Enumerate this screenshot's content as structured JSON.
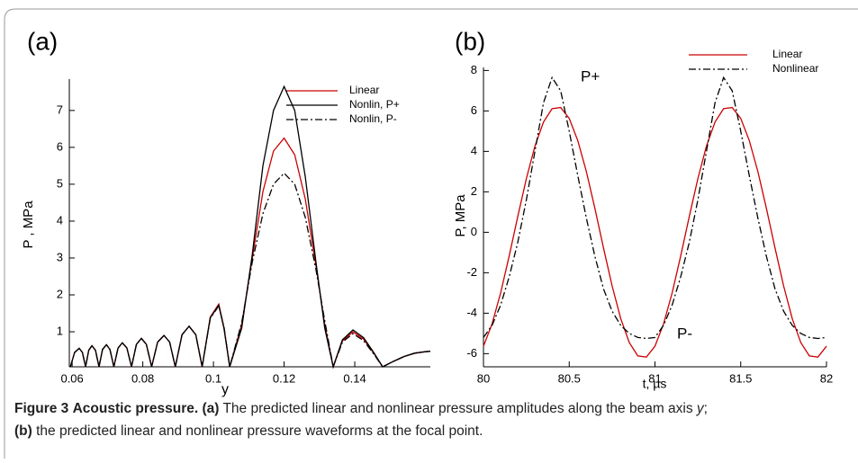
{
  "chart_data": [
    {
      "type": "line",
      "title": "(a)",
      "xlabel": "y",
      "ylabel": "P , MPa",
      "x": [
        0.0595,
        0.0607,
        0.062,
        0.0629,
        0.0638,
        0.0647,
        0.0656,
        0.0666,
        0.0676,
        0.0686,
        0.0697,
        0.0707,
        0.0718,
        0.073,
        0.0742,
        0.0755,
        0.0768,
        0.0782,
        0.0796,
        0.081,
        0.0825,
        0.0842,
        0.086,
        0.0876,
        0.0892,
        0.0911,
        0.0931,
        0.095,
        0.0968,
        0.0991,
        0.1015,
        0.103,
        0.1046,
        0.108,
        0.111,
        0.114,
        0.117,
        0.12,
        0.123,
        0.126,
        0.129,
        0.1315,
        0.1339,
        0.1365,
        0.1395,
        0.1425,
        0.1455,
        0.1479,
        0.151,
        0.154,
        0.157,
        0.16,
        0.1614
      ],
      "series": [
        {
          "name": "Linear",
          "color": "#cc0000",
          "dash": "solid",
          "values": [
            0.05,
            0.44,
            0.55,
            0.44,
            0.05,
            0.5,
            0.62,
            0.5,
            0.05,
            0.52,
            0.65,
            0.52,
            0.05,
            0.56,
            0.7,
            0.56,
            0.05,
            0.66,
            0.82,
            0.66,
            0.05,
            0.72,
            0.9,
            0.72,
            0.05,
            0.92,
            1.15,
            0.92,
            0.05,
            1.4,
            1.75,
            1.1,
            0.05,
            1.2,
            3.0,
            4.8,
            5.9,
            6.25,
            5.8,
            4.6,
            2.8,
            1.2,
            0.05,
            0.75,
            1.0,
            0.8,
            0.4,
            0.05,
            0.2,
            0.33,
            0.42,
            0.46,
            0.47
          ]
        },
        {
          "name": "Nonlin, P+",
          "color": "#000000",
          "dash": "solid",
          "values": [
            0.05,
            0.44,
            0.55,
            0.44,
            0.05,
            0.5,
            0.62,
            0.5,
            0.05,
            0.52,
            0.65,
            0.52,
            0.05,
            0.56,
            0.7,
            0.56,
            0.05,
            0.66,
            0.82,
            0.66,
            0.05,
            0.72,
            0.9,
            0.72,
            0.05,
            0.92,
            1.15,
            0.92,
            0.05,
            1.38,
            1.72,
            1.08,
            0.05,
            1.1,
            3.1,
            5.5,
            7.0,
            7.65,
            7.0,
            5.2,
            2.9,
            1.1,
            0.05,
            0.78,
            1.05,
            0.84,
            0.42,
            0.05,
            0.2,
            0.33,
            0.42,
            0.46,
            0.47
          ]
        },
        {
          "name": "Nonlin, P-",
          "color": "#000000",
          "dash": "dashdot",
          "values": [
            0.05,
            0.44,
            0.55,
            0.44,
            0.05,
            0.5,
            0.62,
            0.5,
            0.05,
            0.52,
            0.65,
            0.52,
            0.05,
            0.56,
            0.7,
            0.56,
            0.05,
            0.66,
            0.82,
            0.66,
            0.05,
            0.72,
            0.9,
            0.72,
            0.05,
            0.92,
            1.15,
            0.92,
            0.05,
            1.36,
            1.7,
            1.12,
            0.05,
            1.25,
            2.9,
            4.2,
            5.0,
            5.3,
            5.0,
            4.1,
            2.7,
            1.3,
            0.05,
            0.72,
            0.95,
            0.76,
            0.38,
            0.05,
            0.2,
            0.33,
            0.42,
            0.46,
            0.47
          ]
        }
      ],
      "xlim": [
        0.0592,
        0.1614
      ],
      "ylim": [
        0.05,
        7.85
      ],
      "xticks": [
        0.06,
        0.08,
        0.1,
        0.12,
        0.14
      ],
      "yticks": [
        1,
        2,
        3,
        4,
        5,
        6,
        7
      ]
    },
    {
      "type": "line",
      "title": "(b)",
      "xlabel": "t, µs",
      "ylabel": "P, MPa",
      "x": [
        80,
        80.05,
        80.1,
        80.15,
        80.2,
        80.25,
        80.3,
        80.35,
        80.4,
        80.45,
        80.5,
        80.55,
        80.6,
        80.65,
        80.7,
        80.75,
        80.8,
        80.85,
        80.9,
        80.95,
        81,
        81.05,
        81.1,
        81.15,
        81.2,
        81.25,
        81.3,
        81.35,
        81.4,
        81.45,
        81.5,
        81.55,
        81.6,
        81.65,
        81.7,
        81.75,
        81.8,
        81.85,
        81.9,
        81.95,
        82
      ],
      "series": [
        {
          "name": "Linear",
          "color": "#cc0000",
          "dash": "solid",
          "values": [
            -5.63,
            -4.53,
            -3.0,
            -1.17,
            0.78,
            2.65,
            4.26,
            5.45,
            6.11,
            6.17,
            5.63,
            4.53,
            3.0,
            1.17,
            -0.78,
            -2.65,
            -4.26,
            -5.45,
            -6.11,
            -6.17,
            -5.63,
            -4.53,
            -3.0,
            -1.17,
            0.78,
            2.65,
            4.26,
            5.45,
            6.11,
            6.17,
            5.63,
            4.53,
            3.0,
            1.17,
            -0.78,
            -2.65,
            -4.26,
            -5.45,
            -6.11,
            -6.17,
            -5.63
          ]
        },
        {
          "name": "Nonlinear",
          "color": "#000000",
          "dash": "dashdot",
          "values": [
            -5.2,
            -4.6,
            -3.6,
            -2.2,
            -0.5,
            1.6,
            4.0,
            6.4,
            7.65,
            7.0,
            5.0,
            2.8,
            0.7,
            -1.2,
            -2.8,
            -3.9,
            -4.6,
            -5.0,
            -5.2,
            -5.25,
            -5.2,
            -4.6,
            -3.6,
            -2.2,
            -0.5,
            1.6,
            4.0,
            6.4,
            7.65,
            7.0,
            5.0,
            2.8,
            0.7,
            -1.2,
            -2.8,
            -3.9,
            -4.6,
            -5.0,
            -5.2,
            -5.25,
            -5.2
          ]
        }
      ],
      "xlim": [
        80,
        82
      ],
      "ylim": [
        -6.65,
        8.15
      ],
      "xticks": [
        80,
        80.5,
        81,
        81.5,
        82
      ],
      "yticks": [
        -6,
        -4,
        -2,
        0,
        2,
        4,
        6,
        8
      ],
      "annotations": [
        "P+",
        "P-"
      ]
    }
  ],
  "caption": {
    "label": "Figure 3",
    "title": "Acoustic pressure.",
    "parts": [
      "(a)",
      " The predicted linear and nonlinear pressure amplitudes along the beam axis ",
      "y",
      "; ",
      "(b)",
      " the predicted linear and nonlinear pressure waveforms at the focal point."
    ]
  }
}
